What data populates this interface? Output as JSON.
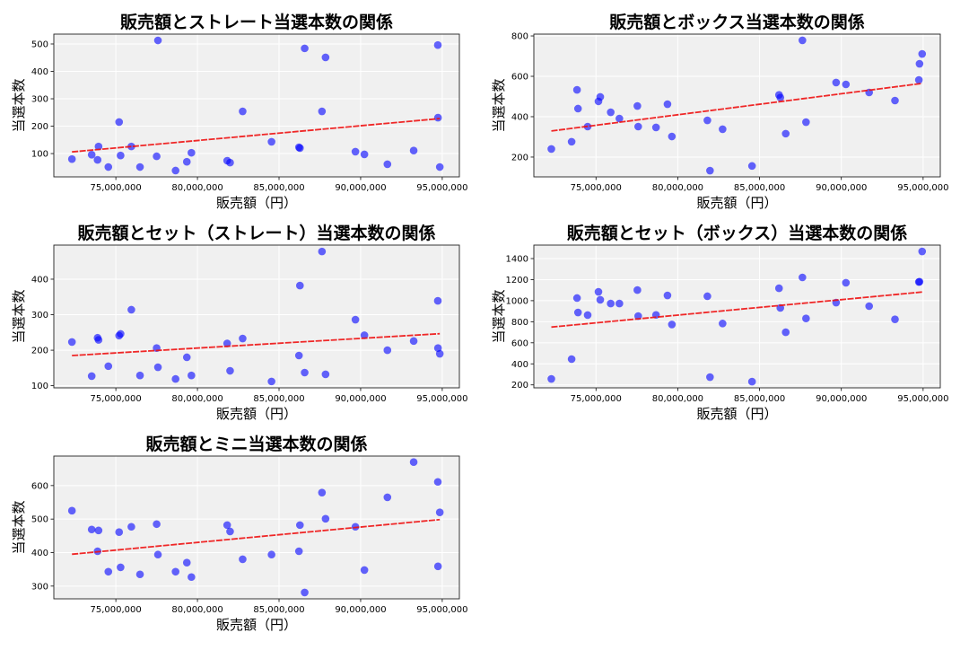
{
  "chart_data": [
    {
      "type": "scatter",
      "title": "販売額とストレート当選本数の関係",
      "xlabel": "販売額（円）",
      "ylabel": "当選本数",
      "xlim": [
        71200000,
        96050000
      ],
      "ylim": [
        15,
        536
      ],
      "xticks": [
        75000000,
        80000000,
        85000000,
        90000000,
        95000000
      ],
      "xtick_labels": [
        "75,000,000",
        "80,000,000",
        "85,000,000",
        "90,000,000",
        "95,000,000"
      ],
      "yticks": [
        100,
        200,
        300,
        400,
        500
      ],
      "grid": true,
      "trendline": true,
      "x": [
        72310000,
        73520000,
        73880000,
        73940000,
        74540000,
        75200000,
        75290000,
        75950000,
        76480000,
        77500000,
        77580000,
        78660000,
        79350000,
        79630000,
        81820000,
        82000000,
        82770000,
        84540000,
        86220000,
        86280000,
        86570000,
        87630000,
        87850000,
        89680000,
        90230000,
        91640000,
        93250000,
        94730000,
        94740000,
        94850000
      ],
      "y": [
        80,
        96,
        77,
        126,
        51,
        215,
        93,
        126,
        51,
        90,
        513,
        38,
        70,
        103,
        74,
        67,
        254,
        143,
        123,
        120,
        484,
        254,
        451,
        107,
        97,
        61,
        111,
        496,
        231,
        51
      ]
    },
    {
      "type": "scatter",
      "title": "販売額とボックス当選本数の関係",
      "xlabel": "販売額（円）",
      "ylabel": "当選本数",
      "xlim": [
        71200000,
        96050000
      ],
      "ylim": [
        102,
        809
      ],
      "xticks": [
        75000000,
        80000000,
        85000000,
        90000000,
        95000000
      ],
      "xtick_labels": [
        "75,000,000",
        "80,000,000",
        "85,000,000",
        "90,000,000",
        "95,000,000"
      ],
      "yticks": [
        200,
        400,
        600,
        800
      ],
      "grid": true,
      "trendline": true,
      "x": [
        72270000,
        73510000,
        73840000,
        73900000,
        74490000,
        75150000,
        75260000,
        75900000,
        76430000,
        77530000,
        77580000,
        78670000,
        79370000,
        79640000,
        81810000,
        81970000,
        82740000,
        84540000,
        86190000,
        86270000,
        86600000,
        87620000,
        87840000,
        89680000,
        90280000,
        91700000,
        93280000,
        94740000,
        94780000,
        94940000
      ],
      "y": [
        240,
        276,
        533,
        440,
        351,
        476,
        498,
        422,
        391,
        453,
        351,
        347,
        462,
        302,
        382,
        133,
        338,
        156,
        508,
        495,
        316,
        778,
        373,
        569,
        560,
        520,
        480,
        582,
        662,
        711
      ]
    },
    {
      "type": "scatter",
      "title": "販売額とセット（ストレート）当選本数の関係",
      "xlabel": "販売額（円）",
      "ylabel": "当選本数",
      "xlim": [
        71200000,
        96050000
      ],
      "ylim": [
        94,
        496
      ],
      "xticks": [
        75000000,
        80000000,
        85000000,
        90000000,
        95000000
      ],
      "xtick_labels": [
        "75,000,000",
        "80,000,000",
        "85,000,000",
        "90,000,000",
        "95,000,000"
      ],
      "yticks": [
        100,
        200,
        300,
        400
      ],
      "grid": true,
      "trendline": true,
      "x": [
        72310000,
        73520000,
        73880000,
        73940000,
        74540000,
        75200000,
        75290000,
        75950000,
        76480000,
        77500000,
        77580000,
        78660000,
        79350000,
        79630000,
        81820000,
        82000000,
        82770000,
        84540000,
        86220000,
        86280000,
        86570000,
        87630000,
        87850000,
        89680000,
        90230000,
        91640000,
        93250000,
        94730000,
        94740000,
        94850000
      ],
      "y": [
        223,
        127,
        235,
        229,
        155,
        241,
        246,
        314,
        129,
        206,
        152,
        119,
        180,
        129,
        219,
        142,
        233,
        112,
        185,
        382,
        137,
        478,
        132,
        286,
        242,
        200,
        226,
        339,
        206,
        190
      ]
    },
    {
      "type": "scatter",
      "title": "販売額とセット（ボックス）当選本数の関係",
      "xlabel": "販売額（円）",
      "ylabel": "当選本数",
      "xlim": [
        71200000,
        96050000
      ],
      "ylim": [
        172,
        1528
      ],
      "xticks": [
        75000000,
        80000000,
        85000000,
        90000000,
        95000000
      ],
      "xtick_labels": [
        "75,000,000",
        "80,000,000",
        "85,000,000",
        "90,000,000",
        "95,000,000"
      ],
      "yticks": [
        200,
        400,
        600,
        800,
        1000,
        1200,
        1400
      ],
      "grid": true,
      "trendline": true,
      "x": [
        72270000,
        73510000,
        73840000,
        73900000,
        74490000,
        75150000,
        75260000,
        75900000,
        76430000,
        77530000,
        77580000,
        78670000,
        79370000,
        79640000,
        81810000,
        81970000,
        82740000,
        84540000,
        86190000,
        86270000,
        86600000,
        87620000,
        87840000,
        89680000,
        90280000,
        91700000,
        93280000,
        94740000,
        94780000,
        94940000
      ],
      "y": [
        257,
        445,
        1025,
        888,
        863,
        1084,
        1008,
        973,
        973,
        1101,
        854,
        865,
        1050,
        774,
        1042,
        274,
        783,
        231,
        1118,
        931,
        700,
        1221,
        831,
        982,
        1170,
        948,
        823,
        1178,
        1180,
        1468
      ]
    },
    {
      "type": "scatter",
      "title": "販売額とミニ当選本数の関係",
      "xlabel": "販売額（円）",
      "ylabel": "当選本数",
      "xlim": [
        71200000,
        96050000
      ],
      "ylim": [
        262,
        688
      ],
      "xticks": [
        75000000,
        80000000,
        85000000,
        90000000,
        95000000
      ],
      "xtick_labels": [
        "75,000,000",
        "80,000,000",
        "85,000,000",
        "90,000,000",
        "95,000,000"
      ],
      "yticks": [
        300,
        400,
        500,
        600
      ],
      "grid": true,
      "trendline": true,
      "x": [
        72310000,
        73520000,
        73880000,
        73940000,
        74540000,
        75200000,
        75290000,
        75950000,
        76480000,
        77500000,
        77580000,
        78660000,
        79350000,
        79630000,
        81820000,
        82000000,
        82770000,
        84540000,
        86220000,
        86280000,
        86570000,
        87630000,
        87850000,
        89680000,
        90230000,
        91640000,
        93250000,
        94730000,
        94740000,
        94850000
      ],
      "y": [
        525,
        469,
        404,
        466,
        343,
        461,
        356,
        477,
        335,
        485,
        394,
        343,
        370,
        327,
        482,
        463,
        380,
        394,
        404,
        482,
        281,
        579,
        501,
        477,
        348,
        565,
        670,
        611,
        359,
        520
      ]
    }
  ],
  "colors": {
    "points": "#0000ff",
    "trendline": "#ee1111",
    "plot_background": "#f0f0f0",
    "grid": "#ffffff"
  }
}
